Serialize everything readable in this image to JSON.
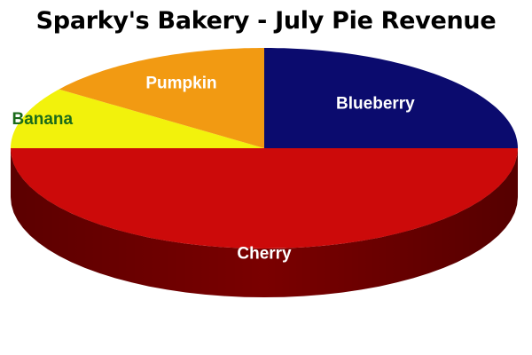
{
  "chart_data": {
    "type": "pie",
    "title": "Sparky's Bakery - July Pie Revenue",
    "categories": [
      "Blueberry",
      "Cherry",
      "Banana",
      "Pumpkin"
    ],
    "values": [
      25,
      50,
      10,
      15
    ],
    "value_unit": "percent",
    "colors": [
      "#0b0b6e",
      "#cc0a0a",
      "#f2f20c",
      "#f29a12"
    ],
    "side_colors": [
      "#07074a",
      "#7a0000",
      "#a8a800",
      "#b06a00"
    ],
    "label_colors": [
      "#ffffff",
      "#ffffff",
      "#1a6a1a",
      "#ffffff"
    ],
    "start_direction": "12 o'clock",
    "orientation": "clockwise",
    "style": "3d-tilted"
  }
}
